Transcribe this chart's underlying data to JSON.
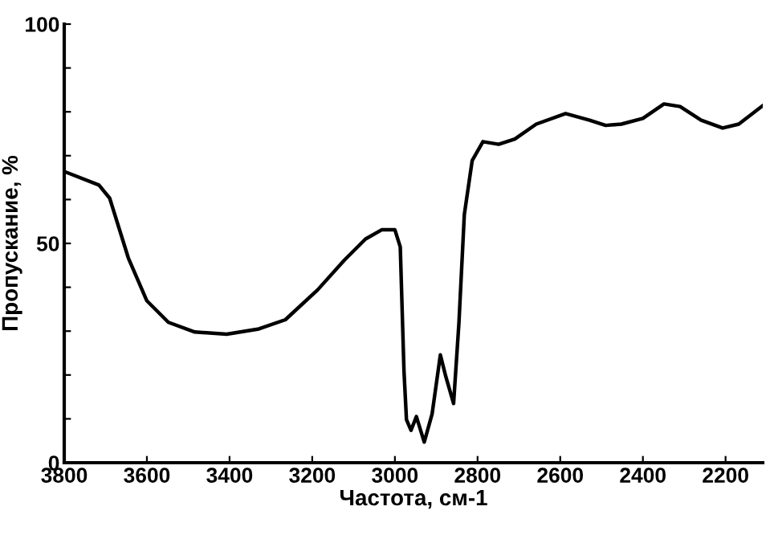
{
  "chart_data": {
    "type": "line",
    "xlabel": "Частота, см-1",
    "ylabel": "Пропускание, %",
    "xlim": [
      3800,
      2110
    ],
    "xticks": [
      3800,
      3600,
      3400,
      3200,
      3000,
      2800,
      2600,
      2400,
      2200
    ],
    "ylim": [
      0,
      100
    ],
    "yticks": [
      0,
      {
        "value": 10,
        "label": null
      },
      {
        "value": 20,
        "label": null
      },
      {
        "value": 30,
        "label": null
      },
      {
        "value": 40,
        "label": null
      },
      50,
      {
        "value": 60,
        "label": null
      },
      {
        "value": 70,
        "label": null
      },
      {
        "value": 80,
        "label": null
      },
      {
        "value": 90,
        "label": null
      },
      100
    ],
    "grid": false,
    "marker": "none",
    "line_style": "solid",
    "series": [
      {
        "color": "#000000",
        "x": [
          3800,
          3716,
          3690,
          3645,
          3600,
          3548,
          3484,
          3407,
          3329,
          3265,
          3187,
          3123,
          3071,
          3032,
          3000,
          2987,
          2978,
          2972,
          2961,
          2948,
          2929,
          2910,
          2890,
          2877,
          2858,
          2845,
          2832,
          2813,
          2787,
          2749,
          2710,
          2658,
          2587,
          2529,
          2490,
          2452,
          2400,
          2349,
          2310,
          2259,
          2207,
          2168,
          2110
        ],
        "values": [
          66.4,
          63.3,
          60.3,
          46.7,
          36.9,
          32,
          29.8,
          29.3,
          30.5,
          32.6,
          39.4,
          46.1,
          51,
          53.1,
          53.1,
          49.2,
          20.9,
          9.8,
          7.4,
          10.5,
          4.7,
          11.1,
          24.6,
          19.7,
          13.5,
          32,
          56.6,
          68.9,
          73.2,
          72.6,
          73.8,
          77.2,
          79.6,
          78.1,
          76.9,
          77.2,
          78.5,
          81.8,
          81.2,
          78.1,
          76.3,
          77.2,
          81.4
        ]
      }
    ]
  }
}
